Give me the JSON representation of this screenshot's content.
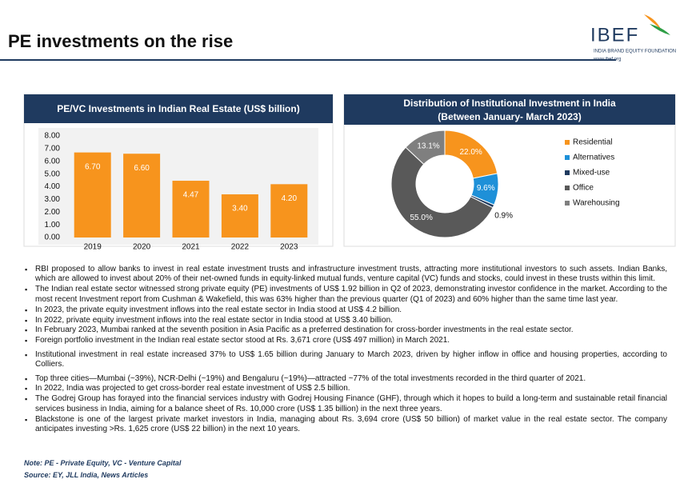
{
  "header": {
    "title": "PE investments on the rise",
    "logo": "IBEF",
    "logo_subtitle": "INDIA BRAND EQUITY FOUNDATION",
    "website": "www.ibef.org"
  },
  "chart_data": [
    {
      "type": "bar",
      "title": "PE/VC Investments in Indian Real Estate (US$ billion)",
      "categories": [
        "2019",
        "2020",
        "2021",
        "2022",
        "2023"
      ],
      "values": [
        6.7,
        6.6,
        4.47,
        3.4,
        4.2
      ],
      "value_labels": [
        "6.70",
        "6.60",
        "4.47",
        "3.40",
        "4.20"
      ],
      "color": "#f7941d",
      "ylim": [
        0,
        8
      ],
      "yticks": [
        {
          "value": 0,
          "label": "0.00"
        },
        {
          "value": 1,
          "label": "1.00"
        },
        {
          "value": 2,
          "label": "2.00"
        },
        {
          "value": 3,
          "label": "3.00"
        },
        {
          "value": 4,
          "label": "4.00"
        },
        {
          "value": 5,
          "label": "5.00"
        },
        {
          "value": 6,
          "label": "6.00"
        },
        {
          "value": 7,
          "label": "7.00"
        },
        {
          "value": 8,
          "label": "8.00"
        }
      ]
    },
    {
      "type": "donut",
      "title": "Distribution of Institutional Investment in India",
      "subtitle": "(Between January- March 2023)",
      "categories": [
        "Residential",
        "Alternatives",
        "Mixed-use",
        "Office",
        "Warehousing"
      ],
      "values": [
        22.0,
        9.6,
        0.9,
        55.0,
        13.1
      ],
      "value_labels": [
        "22.0%",
        "9.6%",
        "0.9%",
        "55.0%",
        "13.1%"
      ],
      "colors": [
        "#f7941d",
        "#1e90d8",
        "#1f3a5f",
        "#595959",
        "#7f7f7f"
      ],
      "legend": "right"
    }
  ],
  "bullets": [
    "RBI proposed to allow banks to invest in real estate investment trusts and infrastructure investment trusts, attracting more institutional investors to such assets. Indian Banks, which are allowed to invest about 20% of their net-owned funds in equity-linked mutual funds, venture capital (VC) funds and stocks, could invest in these trusts within this limit.",
    "The Indian real estate sector witnessed strong private equity (PE) investments of US$ 1.92 billion in Q2 of 2023, demonstrating investor confidence in the market. According to the most recent Investment report from Cushman & Wakefield, this was 63% higher than the previous quarter (Q1 of 2023) and 60% higher than the same time last year.",
    "In 2023, the private equity investment inflows into the real estate sector in India stood at US$ 4.2 billion.",
    "In 2022, private equity investment inflows into the real estate sector in India stood at US$ 3.40 billion.",
    "In February 2023, Mumbai ranked at the seventh position in Asia Pacific as a preferred destination for cross-border investments in the real estate sector.",
    "Foreign portfolio investment in the Indian real estate sector stood at Rs. 3,671 crore (US$ 497 million) in March 2021.",
    "Institutional investment in real estate increased 37% to US$ 1.65 billion during January to March 2023, driven by higher inflow in office and housing properties, according to Colliers.",
    "Top three cities—Mumbai (~39%), NCR-Delhi (~19%) and Bengaluru (~19%)—attracted ~77% of the total investments recorded in the third quarter of 2021.",
    "In 2022, India was projected to get cross-border real estate investment of US$ 2.5 billion.",
    "The Godrej Group has forayed into the financial services industry with Godrej Housing Finance (GHF), through which it hopes to build a long-term and sustainable retail financial services business in India, aiming for a balance sheet of Rs. 10,000 crore (US$ 1.35 billion) in the next three years.",
    "Blackstone is one of the largest private market investors in India, managing about Rs. 3,694 crore (US$ 50 billion) of market value in the real estate sector. The company anticipates investing >Rs. 1,625 crore (US$ 22 billion) in the next 10 years."
  ],
  "note": "Note: PE - Private Equity, VC - Venture Capital",
  "source": "Source: EY, JLL India, News Articles"
}
